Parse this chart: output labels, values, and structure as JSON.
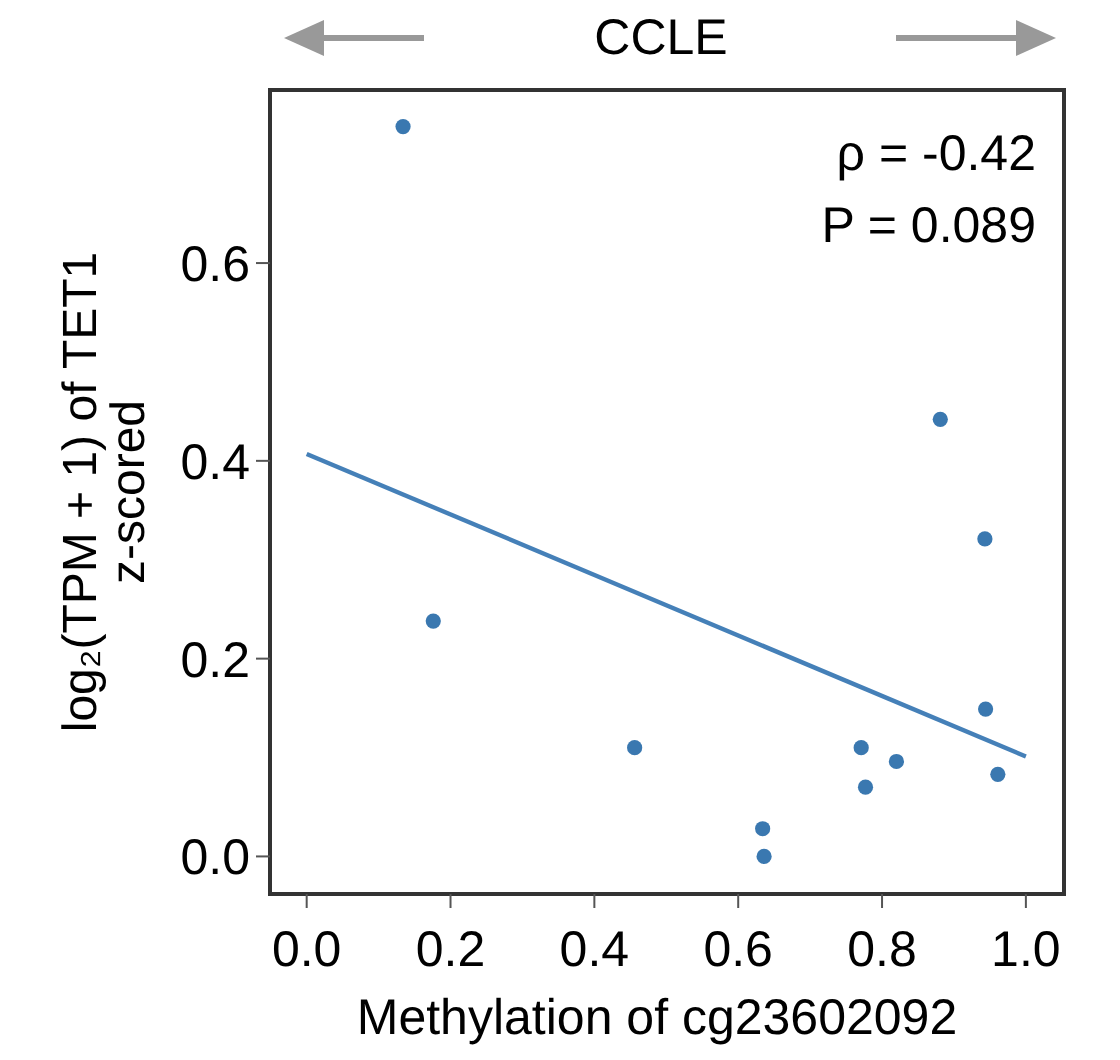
{
  "chart_data": {
    "type": "scatter",
    "title": "CCLE",
    "xlabel": "Methylation of cg23602092",
    "ylabel": "log₂(TPM + 1) of TET1\nz-scored",
    "xlim": [
      -0.051,
      1.053
    ],
    "ylim": [
      -0.038,
      0.775
    ],
    "xticks": [
      {
        "value": 0,
        "label": "0.0"
      },
      0.2,
      0.4,
      0.6,
      0.8,
      {
        "value": 1,
        "label": "1.0"
      }
    ],
    "yticks": [
      {
        "value": 0,
        "label": "0.0"
      },
      0.2,
      0.4,
      0.6
    ],
    "grid": false,
    "annotations": [
      "ρ = -0.42",
      "P = 0.089"
    ],
    "series": [
      {
        "marker": "circle",
        "color": "#3a78b0",
        "x": [
          0.134,
          0.176,
          0.456,
          0.634,
          0.636,
          0.771,
          0.777,
          0.82,
          0.881,
          0.943,
          0.944,
          0.961
        ],
        "values": [
          0.738,
          0.238,
          0.11,
          0.028,
          0.0,
          0.11,
          0.07,
          0.096,
          0.442,
          0.321,
          0.149,
          0.083
        ]
      },
      {
        "type": "line",
        "color": "#4580b8",
        "x": [
          0,
          1
        ],
        "values": [
          0.407,
          0.101
        ]
      }
    ]
  }
}
